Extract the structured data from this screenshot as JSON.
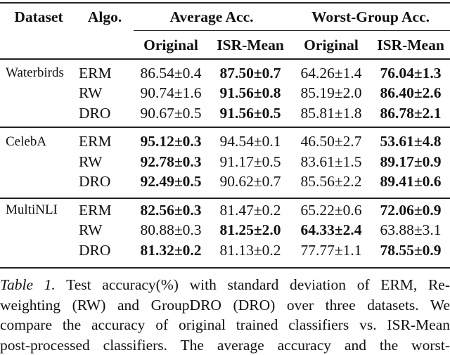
{
  "header": {
    "dataset": "Dataset",
    "algo": "Algo.",
    "avg": "Average Acc.",
    "worst": "Worst-Group Acc.",
    "sub": [
      "Original",
      "ISR-Mean",
      "Original",
      "ISR-Mean"
    ]
  },
  "groups": [
    {
      "dataset": "Waterbirds",
      "rows": [
        {
          "algo": "ERM",
          "cells": [
            {
              "v": "86.54±0.4",
              "b": false
            },
            {
              "v": "87.50±0.7",
              "b": true
            },
            {
              "v": "64.26±1.4",
              "b": false
            },
            {
              "v": "76.04±1.3",
              "b": true
            }
          ]
        },
        {
          "algo": "RW",
          "cells": [
            {
              "v": "90.74±1.6",
              "b": false
            },
            {
              "v": "91.56±0.8",
              "b": true
            },
            {
              "v": "85.19±2.0",
              "b": false
            },
            {
              "v": "86.40±2.6",
              "b": true
            }
          ]
        },
        {
          "algo": "DRO",
          "cells": [
            {
              "v": "90.67±0.5",
              "b": false
            },
            {
              "v": "91.56±0.5",
              "b": true
            },
            {
              "v": "85.81±1.8",
              "b": false
            },
            {
              "v": "86.78±2.1",
              "b": true
            }
          ]
        }
      ]
    },
    {
      "dataset": "CelebA",
      "rows": [
        {
          "algo": "ERM",
          "cells": [
            {
              "v": "95.12±0.3",
              "b": true
            },
            {
              "v": "94.54±0.1",
              "b": false
            },
            {
              "v": "46.50±2.7",
              "b": false
            },
            {
              "v": "53.61±4.8",
              "b": true
            }
          ]
        },
        {
          "algo": "RW",
          "cells": [
            {
              "v": "92.78±0.3",
              "b": true
            },
            {
              "v": "91.17±0.5",
              "b": false
            },
            {
              "v": "83.61±1.5",
              "b": false
            },
            {
              "v": "89.17±0.9",
              "b": true
            }
          ]
        },
        {
          "algo": "DRO",
          "cells": [
            {
              "v": "92.49±0.5",
              "b": true
            },
            {
              "v": "90.62±0.7",
              "b": false
            },
            {
              "v": "85.56±2.2",
              "b": false
            },
            {
              "v": "89.41±0.6",
              "b": true
            }
          ]
        }
      ]
    },
    {
      "dataset": "MultiNLI",
      "rows": [
        {
          "algo": "ERM",
          "cells": [
            {
              "v": "82.56±0.3",
              "b": true
            },
            {
              "v": "81.47±0.2",
              "b": false
            },
            {
              "v": "65.22±0.6",
              "b": false
            },
            {
              "v": "72.06±0.9",
              "b": true
            }
          ]
        },
        {
          "algo": "RW",
          "cells": [
            {
              "v": "80.88±0.3",
              "b": false
            },
            {
              "v": "81.25±2.0",
              "b": true
            },
            {
              "v": "64.33±2.4",
              "b": true
            },
            {
              "v": "63.88±3.1",
              "b": false
            }
          ]
        },
        {
          "algo": "DRO",
          "cells": [
            {
              "v": "81.32±0.2",
              "b": true
            },
            {
              "v": "81.13±0.2",
              "b": false
            },
            {
              "v": "77.77±1.1",
              "b": false
            },
            {
              "v": "78.55±0.9",
              "b": true
            }
          ]
        }
      ]
    }
  ],
  "caption": {
    "label": "Table 1.",
    "lines": [
      " Test accuracy(%) with standard deviation of ERM, Re-",
      "weighting (RW) and GroupDRO (DRO) over three datasets. We",
      "compare the accuracy of original trained classifiers vs. ISR-Mean",
      "post-processed classifiers. The average accuracy and the worst-"
    ]
  }
}
